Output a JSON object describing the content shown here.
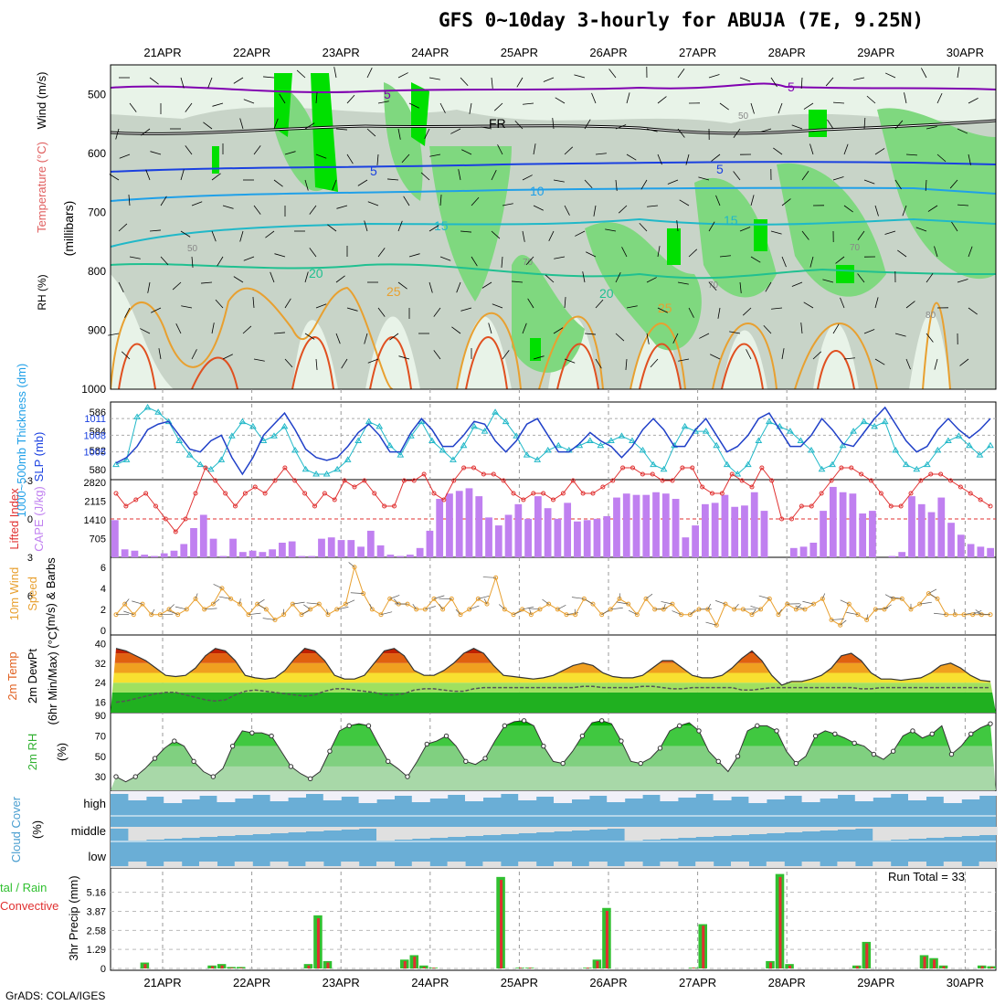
{
  "title": "GFS 0~10day 3-hourly for ABUJA (7E, 9.25N)",
  "credit": "GrADS: COLA/IGES",
  "run_total": "Run Total = 33",
  "date_labels": [
    "21APR",
    "22APR",
    "23APR",
    "24APR",
    "25APR",
    "26APR",
    "27APR",
    "28APR",
    "29APR",
    "30APR"
  ],
  "panel_labels": {
    "p1_rh": "RH (%)",
    "p1_temp": "Temperature (°C)",
    "p1_wind": "Wind (m/s)",
    "p1_units": "(millibars)",
    "p2_thick": "1000~500mb Thickness (dm)",
    "p2_slp": "SLP (mb)",
    "p3_li": "Lifted Index",
    "p3_cape": "CAPE (J/kg)",
    "p4_a": "10m Wind",
    "p4_b": "Speed",
    "p4_c": "(m/s) & Barbs",
    "p5_a": "2m Temp",
    "p5_b": "2m DewPt",
    "p5_c": "(6hr Min/Max) (°C)",
    "p6_a": "2m RH",
    "p6_b": "(%)",
    "p7_a": "Cloud Cover",
    "p7_b": "(%)",
    "p8_a": "tal / Rain",
    "p8_b": "Convective",
    "p8_c": "3hr Precip (mm)"
  },
  "colors": {
    "rh_light": "#e8f3e8",
    "rh_mid": "#c8d4c8",
    "rh_green": "#7fd87f",
    "rh_bright": "#00e000",
    "thick_line": "#20b8c8",
    "slp_line": "#2040c8",
    "li_line": "#e03030",
    "cape_bar": "#c080f0",
    "wind_line": "#e8a030",
    "cloud_fill": "#6aaed6",
    "cloud_bg": "#f0f0f8",
    "precip_green": "#30c030",
    "precip_red": "#e03030"
  },
  "chart_data": [
    {
      "type": "heatmap",
      "title": "GFS 0~10day 3-hourly for ABUJA (7E, 9.25N)",
      "ylabel": "(millibars)",
      "y_ticks": [
        500,
        600,
        700,
        800,
        900,
        1000
      ],
      "ylim": [
        1000,
        450
      ],
      "x_categories": [
        "21APR",
        "22APR",
        "23APR",
        "24APR",
        "25APR",
        "26APR",
        "27APR",
        "28APR",
        "29APR",
        "30APR"
      ],
      "contour_labels": {
        "wind": [
          "5",
          "5"
        ],
        "freezing": "FR",
        "temperature": [
          "5",
          "5",
          "10",
          "15",
          "15",
          "20",
          "20",
          "25",
          "25"
        ],
        "rh": [
          "50",
          "50",
          "70",
          "70",
          "70",
          "80"
        ]
      }
    },
    {
      "type": "line",
      "series": [
        {
          "name": "1000~500mb Thickness (dm)",
          "axis": "left",
          "ticks": [
            580,
            582,
            584,
            586
          ],
          "values": [
            580.5,
            581,
            585.5,
            586.5,
            586,
            585,
            583,
            581.5,
            580.5,
            580,
            581,
            583.5,
            585,
            584.5,
            583,
            583.5,
            584.5,
            582,
            580,
            579.5,
            579.5,
            580,
            581,
            583,
            585,
            584.5,
            582.5,
            581.5,
            583.5,
            585,
            583,
            582,
            581,
            582.5,
            584.5,
            584,
            586,
            585,
            583.5,
            581.5,
            581,
            582,
            582.5,
            582,
            582.5,
            583,
            582.5,
            583,
            583.5,
            583,
            582,
            580.5,
            580,
            582.5,
            584.5,
            584,
            584,
            582.5,
            580.5,
            579.5,
            580.5,
            583,
            585,
            584.5,
            584,
            583,
            582,
            580,
            580.5,
            582.5,
            584,
            585,
            584.5,
            585,
            582,
            580.5,
            580,
            580.5,
            582,
            583,
            583.5,
            582.5,
            581.5,
            582.5
          ]
        },
        {
          "name": "SLP (mb)",
          "axis": "right",
          "ticks": [
            1005,
            1008,
            1011
          ],
          "values": [
            1003,
            1004,
            1006,
            1009,
            1010,
            1010.5,
            1008,
            1005.5,
            1005,
            1007,
            1008,
            1004,
            1001,
            1004,
            1008,
            1010,
            1012,
            1009,
            1005.5,
            1004,
            1003.5,
            1004,
            1006,
            1008.5,
            1010,
            1008,
            1005,
            1005,
            1008.5,
            1011,
            1009,
            1006,
            1006,
            1008,
            1010.5,
            1010,
            1007,
            1005,
            1007,
            1010,
            1011,
            1008,
            1005,
            1005,
            1006.5,
            1008.5,
            1007,
            1006,
            1004,
            1006,
            1009,
            1011,
            1009,
            1006,
            1006,
            1009,
            1011,
            1008,
            1005,
            1006,
            1008,
            1011,
            1012,
            1009,
            1006,
            1006,
            1008,
            1011,
            1009,
            1006.5,
            1006,
            1008.5,
            1011,
            1013,
            1010,
            1007,
            1005,
            1006,
            1009,
            1011,
            1009,
            1007.5,
            1009,
            1011
          ]
        }
      ]
    },
    {
      "type": "bar",
      "title": "Lifted Index / CAPE",
      "li_ticks": [
        -3,
        0,
        3,
        6
      ],
      "cape_ticks": [
        705,
        1410,
        2115,
        2820
      ],
      "cape_values": [
        1400,
        300,
        250,
        100,
        50,
        150,
        250,
        500,
        1100,
        1600,
        700,
        50,
        700,
        200,
        250,
        200,
        300,
        550,
        600,
        50,
        50,
        700,
        750,
        650,
        650,
        400,
        1000,
        450,
        100,
        50,
        100,
        350,
        1000,
        2200,
        2400,
        2500,
        2600,
        2300,
        1500,
        1200,
        1600,
        2000,
        1450,
        2300,
        1850,
        1450,
        2050,
        1350,
        1400,
        1450,
        1550,
        2250,
        2400,
        2350,
        2350,
        2450,
        2400,
        2200,
        750,
        1200,
        2000,
        2050,
        2350,
        1900,
        1950,
        2450,
        1750,
        0,
        0,
        350,
        400,
        550,
        1750,
        2650,
        2450,
        2400,
        1650,
        1750,
        0,
        50,
        200,
        2300,
        2000,
        1700,
        2250,
        1300,
        850,
        500,
        400,
        350
      ],
      "li_values": [
        -2,
        -1,
        -1.5,
        -2,
        -1,
        0,
        1,
        0,
        -2,
        -4,
        -3,
        -2,
        -1,
        -2,
        -2.5,
        -2,
        -3,
        -4,
        -3,
        -2,
        -1,
        -2,
        -1.5,
        -3,
        -2.5,
        -3,
        -2,
        -1,
        -1,
        -3,
        -3,
        -3.5,
        -2,
        -1.5,
        -3,
        -4,
        -4,
        -3.5,
        -3.5,
        -3,
        -2,
        -1.5,
        -2,
        -2,
        -1.5,
        -2,
        -3,
        -2,
        -2,
        -2.5,
        -3,
        -4,
        -4,
        -3.5,
        -3.5,
        -3,
        -3,
        -4,
        -4,
        -2.5,
        -2,
        -2,
        -3.5,
        -3,
        -2.5,
        -4,
        -3,
        0,
        0,
        -1,
        -1,
        -2,
        -3,
        -4,
        -4,
        -3.5,
        -3,
        -2,
        -1,
        -1,
        -2,
        -3,
        -3.5,
        -3.5,
        -3,
        -2.5,
        -2,
        -1.5,
        -1
      ]
    },
    {
      "type": "line",
      "title": "10m Wind Speed",
      "ylabel": "(m/s)",
      "y_ticks": [
        0,
        2,
        4,
        6
      ],
      "values": [
        1.5,
        2.5,
        1.5,
        2.5,
        1.5,
        1.5,
        2,
        1.5,
        2,
        3,
        2,
        2.5,
        4,
        3,
        2.5,
        1.5,
        2.5,
        2,
        1,
        1.5,
        2.5,
        1.5,
        2,
        2.5,
        1.5,
        2,
        2.5,
        6,
        3.5,
        2,
        1.5,
        3,
        2.5,
        2.5,
        2,
        2,
        3,
        2,
        3,
        1.5,
        2,
        3,
        2.5,
        5,
        2,
        1.5,
        2,
        1.5,
        2,
        2.5,
        2,
        1.5,
        1.5,
        3,
        2.5,
        1.5,
        2,
        3,
        2.5,
        1.5,
        3,
        2,
        2,
        2.5,
        1.5,
        1.5,
        2,
        2,
        0.5,
        2.5,
        2,
        2,
        1.5,
        2,
        3,
        1.5,
        2.5,
        2,
        2,
        2.5,
        3,
        1,
        0.5,
        2.5,
        1.5,
        1,
        2,
        2,
        3,
        3,
        2,
        2.5,
        3.5,
        3,
        1.5,
        1.5,
        1.5,
        1.5,
        1.5,
        1.5
      ]
    },
    {
      "type": "area",
      "title": "2m Temp / 2m DewPt",
      "ylabel": "(°C)",
      "y_ticks": [
        16,
        24,
        32,
        40
      ],
      "temp": [
        38,
        37,
        35,
        33,
        30,
        27,
        26.5,
        27,
        30,
        35,
        38,
        37,
        33,
        27,
        26,
        25.5,
        26,
        29,
        34,
        38,
        37,
        33,
        27,
        25.5,
        25.5,
        27,
        32,
        37,
        38,
        35,
        29,
        27,
        27,
        29,
        32,
        36,
        38,
        36,
        31,
        27,
        26.5,
        26,
        25.5,
        26,
        27,
        29,
        31,
        32,
        31,
        28,
        26.5,
        26,
        26,
        27,
        30,
        33,
        33,
        30,
        27,
        26,
        26,
        27,
        30,
        34,
        37,
        33,
        27,
        23,
        24.5,
        24.5,
        25.5,
        27,
        30,
        35,
        36,
        33,
        28,
        25.5,
        25.5,
        25,
        25.5,
        26,
        28,
        31,
        32,
        30,
        27,
        25,
        24.5
      ],
      "dewpt": [
        16,
        16.5,
        17.5,
        18.5,
        19.5,
        20,
        20,
        19,
        18,
        17,
        16.5,
        17,
        19,
        20.5,
        21,
        20.5,
        20,
        19.5,
        19,
        18.5,
        19,
        20.5,
        21.5,
        21.5,
        21,
        20.5,
        20,
        19,
        19,
        19.5,
        21,
        21.5,
        21.5,
        21,
        20.5,
        20.5,
        21.5,
        22,
        22,
        22,
        22,
        22,
        22,
        22,
        22,
        22,
        22,
        22.5,
        22.5,
        22,
        22,
        22,
        22,
        22.5,
        22.5,
        22,
        21.5,
        21.5,
        22,
        22,
        22,
        22,
        22,
        21,
        21,
        21.5,
        22,
        22,
        22,
        22,
        22,
        22,
        22,
        22,
        22,
        21.5,
        21.5,
        22,
        22,
        22,
        22,
        22,
        22,
        22,
        22,
        22,
        22,
        22,
        22
      ]
    },
    {
      "type": "area",
      "title": "2m RH",
      "ylabel": "(%)",
      "y_ticks": [
        30,
        50,
        70,
        90
      ],
      "values": [
        30,
        25,
        30,
        38,
        48,
        58,
        65,
        60,
        45,
        35,
        30,
        38,
        60,
        75,
        73,
        73,
        70,
        55,
        40,
        33,
        28,
        35,
        55,
        75,
        80,
        82,
        80,
        62,
        45,
        38,
        30,
        45,
        62,
        65,
        70,
        60,
        45,
        42,
        48,
        65,
        80,
        84,
        85,
        80,
        60,
        45,
        43,
        55,
        70,
        83,
        85,
        82,
        65,
        45,
        43,
        48,
        58,
        75,
        80,
        83,
        75,
        55,
        45,
        35,
        50,
        75,
        80,
        80,
        75,
        55,
        43,
        50,
        70,
        75,
        72,
        68,
        63,
        60,
        52,
        47,
        55,
        70,
        75,
        68,
        72,
        80,
        52,
        60,
        72,
        78,
        82
      ]
    },
    {
      "type": "area",
      "title": "Cloud Cover",
      "ylabel": "(%)",
      "categories": [
        "high",
        "middle",
        "low"
      ]
    },
    {
      "type": "bar",
      "title": "3hr Precip (mm)",
      "ylabel": "3hr Precip (mm)",
      "y_ticks": [
        0,
        1.29,
        2.58,
        3.87,
        5.16
      ],
      "annotation": "Run Total = 33",
      "series": [
        {
          "name": "Total / Rain",
          "values": [
            0,
            0,
            0,
            0.4,
            0,
            0,
            0,
            0,
            0,
            0,
            0.2,
            0.3,
            0.1,
            0.1,
            0,
            0,
            0,
            0,
            0,
            0,
            0.3,
            3.6,
            0.5,
            0,
            0,
            0,
            0,
            0,
            0,
            0,
            0.6,
            0.9,
            0.2,
            0.05,
            0,
            0,
            0,
            0,
            0,
            0,
            6.2,
            0,
            0.05,
            0.05,
            0,
            0,
            0,
            0,
            0,
            0.05,
            0.6,
            4.1,
            0,
            0,
            0,
            0,
            0,
            0,
            0,
            0,
            0.05,
            3.0,
            0,
            0,
            0,
            0,
            0,
            0,
            0.5,
            6.4,
            0.3,
            0,
            0,
            0,
            0,
            0,
            0,
            0.2,
            1.8,
            0,
            0,
            0,
            0,
            0,
            0.9,
            0.7,
            0.2,
            0,
            0,
            0,
            0.2,
            0.15
          ]
        },
        {
          "name": "Convective",
          "values": [
            0,
            0,
            0,
            0.3,
            0,
            0,
            0,
            0,
            0,
            0,
            0.15,
            0.2,
            0.05,
            0.05,
            0,
            0,
            0,
            0,
            0,
            0,
            0.2,
            3.4,
            0.4,
            0,
            0,
            0,
            0,
            0,
            0,
            0,
            0.5,
            0.8,
            0.1,
            0.05,
            0,
            0,
            0,
            0,
            0,
            0,
            6.0,
            0,
            0.05,
            0.05,
            0,
            0,
            0,
            0,
            0,
            0.05,
            0.5,
            3.9,
            0,
            0,
            0,
            0,
            0,
            0,
            0,
            0,
            0.05,
            2.9,
            0,
            0,
            0,
            0,
            0,
            0,
            0.4,
            6.2,
            0.2,
            0,
            0,
            0,
            0,
            0,
            0,
            0.15,
            1.7,
            0,
            0,
            0,
            0,
            0,
            0.8,
            0.6,
            0.15,
            0,
            0,
            0,
            0.15,
            0.1
          ]
        }
      ]
    }
  ]
}
